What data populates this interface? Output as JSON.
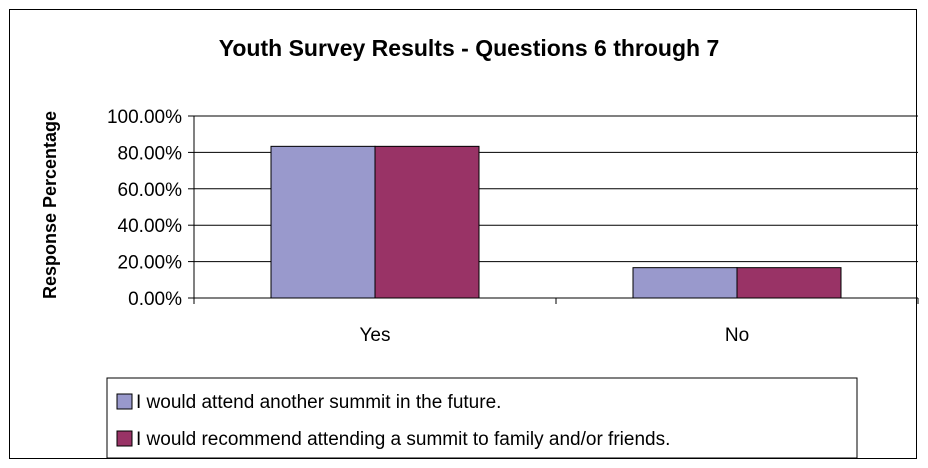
{
  "chart_data": {
    "type": "bar",
    "title": "Youth Survey Results - Questions 6 through 7",
    "xlabel": "",
    "ylabel": "Response Percentage",
    "categories": [
      "Yes",
      "No"
    ],
    "series": [
      {
        "name": "I would attend another summit in the future.",
        "color": "#9999CC",
        "values": [
          83.33,
          16.67
        ]
      },
      {
        "name": "I would recommend attending a summit to family and/or friends.",
        "color": "#993366",
        "values": [
          83.33,
          16.67
        ]
      }
    ],
    "ylim": [
      0,
      100
    ],
    "yticks": [
      0,
      20,
      40,
      60,
      80,
      100
    ],
    "ytick_labels": [
      "0.00%",
      "20.00%",
      "40.00%",
      "60.00%",
      "80.00%",
      "100.00%"
    ],
    "grid": true,
    "legend": "bottom"
  }
}
